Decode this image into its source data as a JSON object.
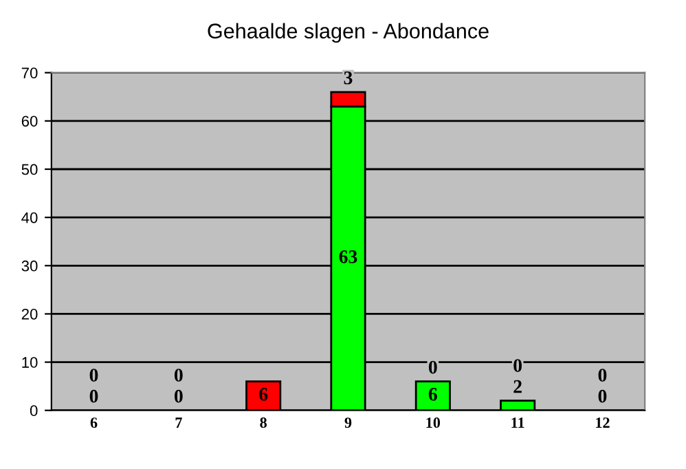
{
  "chart_data": {
    "type": "bar",
    "title": "Gehaalde slagen - Abondance",
    "stacked": true,
    "categories": [
      "6",
      "7",
      "8",
      "9",
      "10",
      "11",
      "12"
    ],
    "series": [
      {
        "color": "#00ff00",
        "values": [
          0,
          0,
          0,
          63,
          6,
          2,
          0
        ],
        "value_labels": [
          "0",
          "0",
          null,
          "63",
          "6",
          "2",
          "0"
        ]
      },
      {
        "color": "#ff0000",
        "values": [
          0,
          0,
          6,
          3,
          0,
          0,
          0
        ],
        "value_labels": [
          "0",
          "0",
          "6",
          "3",
          "0",
          "0",
          "0"
        ]
      }
    ],
    "ylim": [
      0,
      70
    ],
    "yticks": [
      0,
      10,
      20,
      30,
      40,
      50,
      60,
      70
    ],
    "grid": "y",
    "legend": false
  }
}
